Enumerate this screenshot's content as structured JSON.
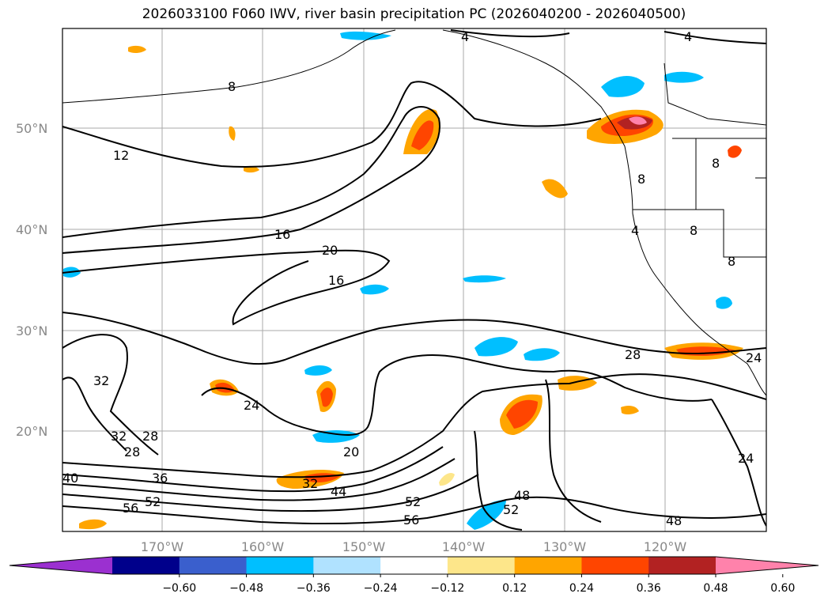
{
  "title": "2026033100 F060 IWV, river basin precipitation PC (2026040200 - 2026040500)",
  "lat_labels": [
    "50°N",
    "40°N",
    "30°N",
    "20°N"
  ],
  "lon_labels": [
    "170°W",
    "160°W",
    "150°W",
    "140°W",
    "130°W",
    "120°W"
  ],
  "colorbar": {
    "ticks": [
      "−0.60",
      "−0.48",
      "−0.36",
      "−0.24",
      "−0.12",
      "0.12",
      "0.24",
      "0.36",
      "0.48",
      "0.60"
    ],
    "colors": [
      "#9b30d0",
      "#00008b",
      "#3a5fcd",
      "#00bfff",
      "#b0e2ff",
      "#ffffff",
      "#fde68a",
      "#ffa500",
      "#ff4500",
      "#b22222",
      "#ff82ab"
    ]
  },
  "contour_labels": [
    "4",
    "4",
    "4",
    "8",
    "8",
    "8",
    "8",
    "8",
    "12",
    "16",
    "16",
    "20",
    "20",
    "24",
    "24",
    "24",
    "28",
    "28",
    "28",
    "32",
    "32",
    "32",
    "36",
    "40",
    "44",
    "48",
    "48",
    "52",
    "52",
    "52",
    "56",
    "56"
  ]
}
